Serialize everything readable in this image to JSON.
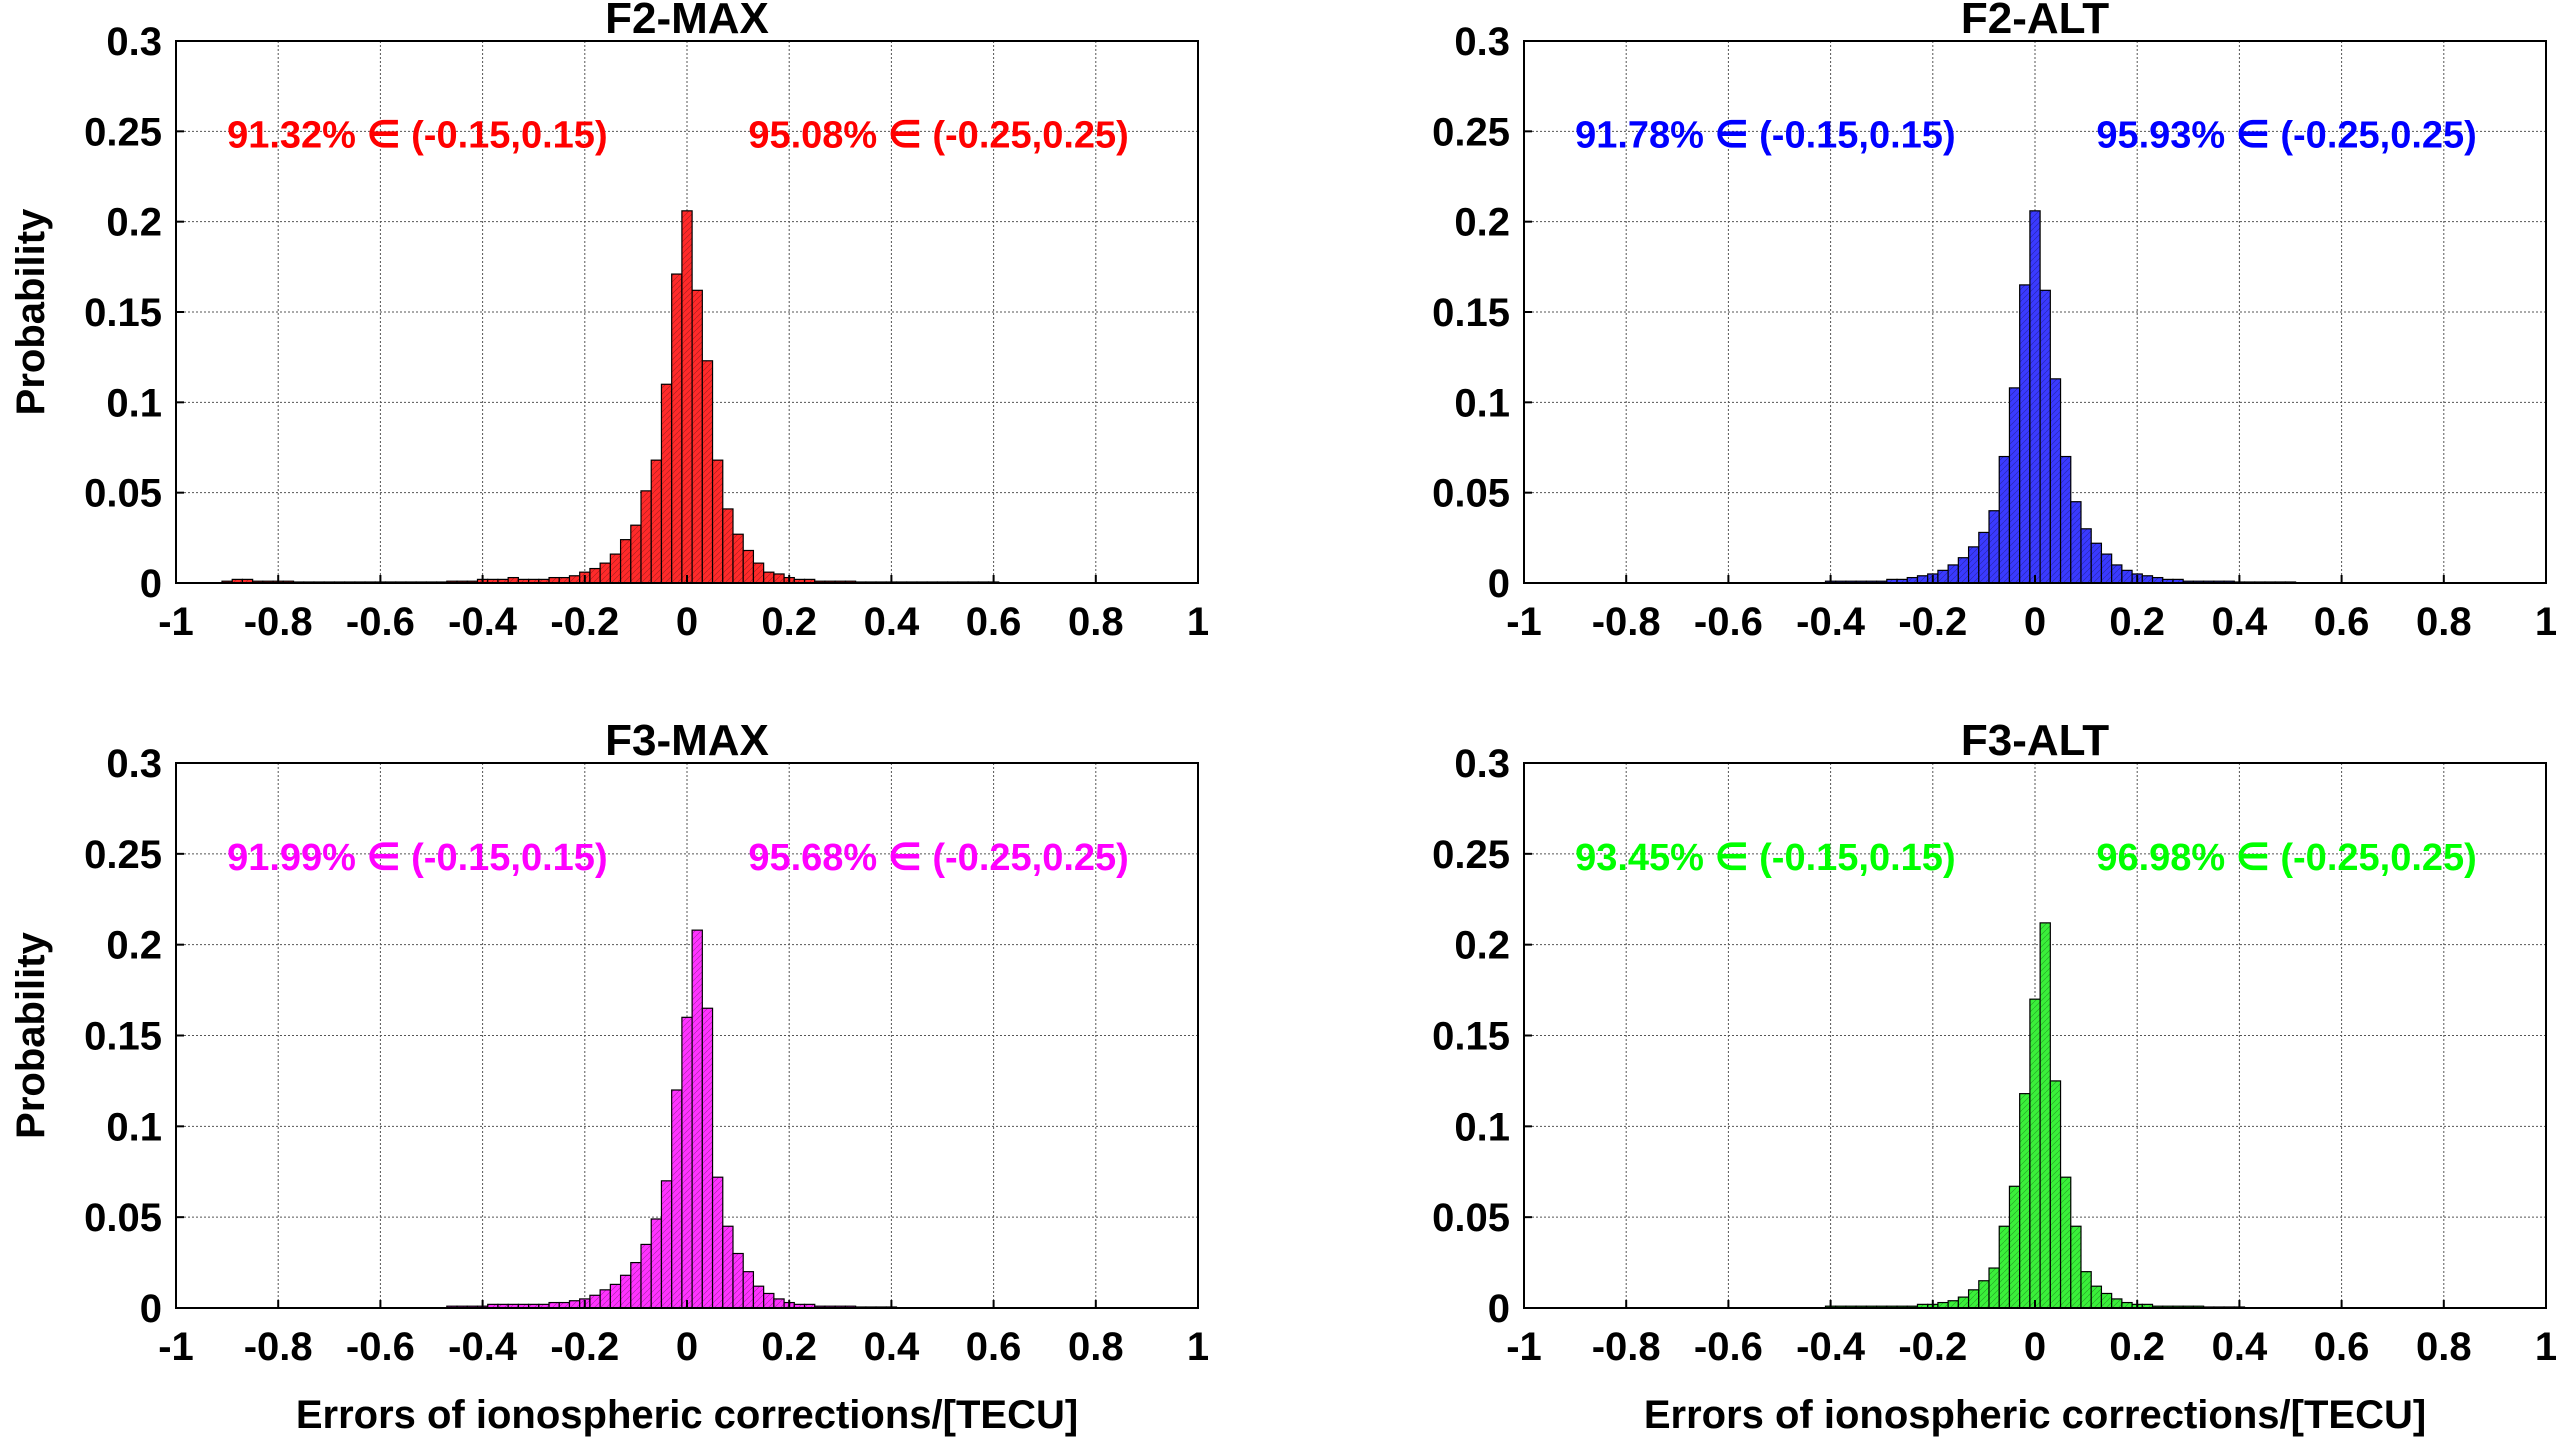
{
  "chart_data": [
    {
      "type": "bar",
      "title": "F2-MAX",
      "color": "#ff2a2a",
      "text_color": "#ff0000",
      "ylabel": "Probability",
      "xlabel": "",
      "xlim": [
        -1,
        1
      ],
      "ylim": [
        0,
        0.3
      ],
      "xticks": [
        "-1",
        "-0.8",
        "-0.6",
        "-0.4",
        "-0.2",
        "0",
        "0.2",
        "0.4",
        "0.6",
        "0.8",
        "1"
      ],
      "yticks": [
        "0",
        "0.05",
        "0.1",
        "0.15",
        "0.2",
        "0.25",
        "0.3"
      ],
      "bin_width": 0.02,
      "bin_centers": [
        -0.9,
        -0.88,
        -0.86,
        -0.84,
        -0.82,
        -0.8,
        -0.78,
        -0.76,
        -0.74,
        -0.72,
        -0.7,
        -0.68,
        -0.66,
        -0.64,
        -0.62,
        -0.6,
        -0.58,
        -0.56,
        -0.54,
        -0.52,
        -0.5,
        -0.48,
        -0.46,
        -0.44,
        -0.42,
        -0.4,
        -0.38,
        -0.36,
        -0.34,
        -0.32,
        -0.3,
        -0.28,
        -0.26,
        -0.24,
        -0.22,
        -0.2,
        -0.18,
        -0.16,
        -0.14,
        -0.12,
        -0.1,
        -0.08,
        -0.06,
        -0.04,
        -0.02,
        0,
        0.02,
        0.04,
        0.06,
        0.08,
        0.1,
        0.12,
        0.14,
        0.16,
        0.18,
        0.2,
        0.22,
        0.24,
        0.26,
        0.28,
        0.3,
        0.32,
        0.34,
        0.36,
        0.38,
        0.4,
        0.42,
        0.44,
        0.46,
        0.48,
        0.5,
        0.52,
        0.54,
        0.56,
        0.58,
        0.6
      ],
      "values": [
        0.001,
        0.002,
        0.002,
        0.001,
        0.001,
        0.001,
        0.001,
        0.0005,
        0.0005,
        0.0005,
        0.0005,
        0.0005,
        0.0005,
        0.0005,
        0.0005,
        0.0005,
        0.0005,
        0.0005,
        0.0005,
        0.0005,
        0.0005,
        0.0005,
        0.001,
        0.001,
        0.001,
        0.002,
        0.002,
        0.002,
        0.003,
        0.002,
        0.002,
        0.002,
        0.003,
        0.003,
        0.004,
        0.006,
        0.008,
        0.011,
        0.016,
        0.024,
        0.032,
        0.051,
        0.068,
        0.11,
        0.171,
        0.206,
        0.162,
        0.123,
        0.068,
        0.041,
        0.027,
        0.018,
        0.011,
        0.006,
        0.005,
        0.003,
        0.002,
        0.002,
        0.001,
        0.001,
        0.001,
        0.001,
        0.0005,
        0.0005,
        0.0005,
        0.0005,
        0.0005,
        0.0005,
        0.0005,
        0.0005,
        0.0005,
        0.0005,
        0.0005,
        0.0005,
        0.0005,
        0.0005
      ],
      "annotations": [
        {
          "text": "91.32% ∈ (-0.15,0.15)"
        },
        {
          "text": "95.08% ∈ (-0.25,0.25)"
        }
      ]
    },
    {
      "type": "bar",
      "title": "F2-ALT",
      "color": "#3a3aff",
      "text_color": "#0000ff",
      "ylabel": "",
      "xlabel": "",
      "xlim": [
        -1,
        1
      ],
      "ylim": [
        0,
        0.3
      ],
      "xticks": [
        "-1",
        "-0.8",
        "-0.6",
        "-0.4",
        "-0.2",
        "0",
        "0.2",
        "0.4",
        "0.6",
        "0.8",
        "1"
      ],
      "yticks": [
        "0",
        "0.05",
        "0.1",
        "0.15",
        "0.2",
        "0.25",
        "0.3"
      ],
      "bin_width": 0.02,
      "bin_centers": [
        -0.4,
        -0.38,
        -0.36,
        -0.34,
        -0.32,
        -0.3,
        -0.28,
        -0.26,
        -0.24,
        -0.22,
        -0.2,
        -0.18,
        -0.16,
        -0.14,
        -0.12,
        -0.1,
        -0.08,
        -0.06,
        -0.04,
        -0.02,
        0,
        0.02,
        0.04,
        0.06,
        0.08,
        0.1,
        0.12,
        0.14,
        0.16,
        0.18,
        0.2,
        0.22,
        0.24,
        0.26,
        0.28,
        0.3,
        0.32,
        0.34,
        0.36,
        0.38,
        0.4,
        0.42,
        0.44,
        0.46,
        0.48,
        0.5
      ],
      "values": [
        0.001,
        0.001,
        0.001,
        0.001,
        0.001,
        0.001,
        0.002,
        0.002,
        0.003,
        0.004,
        0.005,
        0.007,
        0.01,
        0.014,
        0.02,
        0.028,
        0.04,
        0.07,
        0.108,
        0.165,
        0.206,
        0.162,
        0.113,
        0.07,
        0.045,
        0.03,
        0.022,
        0.016,
        0.01,
        0.007,
        0.005,
        0.004,
        0.003,
        0.002,
        0.002,
        0.001,
        0.001,
        0.001,
        0.001,
        0.001,
        0.0005,
        0.0005,
        0.0005,
        0.0005,
        0.0005,
        0.0005
      ],
      "annotations": [
        {
          "text": "91.78% ∈ (-0.15,0.15)"
        },
        {
          "text": "95.93% ∈ (-0.25,0.25)"
        }
      ]
    },
    {
      "type": "bar",
      "title": "F3-MAX",
      "color": "#ff33ff",
      "text_color": "#ff00ff",
      "ylabel": "Probability",
      "xlabel": "Errors of ionospheric corrections/[TECU]",
      "xlim": [
        -1,
        1
      ],
      "ylim": [
        0,
        0.3
      ],
      "xticks": [
        "-1",
        "-0.8",
        "-0.6",
        "-0.4",
        "-0.2",
        "0",
        "0.2",
        "0.4",
        "0.6",
        "0.8",
        "1"
      ],
      "yticks": [
        "0",
        "0.05",
        "0.1",
        "0.15",
        "0.2",
        "0.25",
        "0.3"
      ],
      "bin_width": 0.02,
      "bin_centers": [
        -0.46,
        -0.44,
        -0.42,
        -0.4,
        -0.38,
        -0.36,
        -0.34,
        -0.32,
        -0.3,
        -0.28,
        -0.26,
        -0.24,
        -0.22,
        -0.2,
        -0.18,
        -0.16,
        -0.14,
        -0.12,
        -0.1,
        -0.08,
        -0.06,
        -0.04,
        -0.02,
        0,
        0.02,
        0.04,
        0.06,
        0.08,
        0.1,
        0.12,
        0.14,
        0.16,
        0.18,
        0.2,
        0.22,
        0.24,
        0.26,
        0.28,
        0.3,
        0.32,
        0.34,
        0.36,
        0.38,
        0.4
      ],
      "values": [
        0.001,
        0.001,
        0.001,
        0.001,
        0.002,
        0.002,
        0.002,
        0.002,
        0.002,
        0.002,
        0.003,
        0.003,
        0.004,
        0.005,
        0.007,
        0.01,
        0.013,
        0.018,
        0.025,
        0.035,
        0.049,
        0.07,
        0.12,
        0.16,
        0.208,
        0.165,
        0.072,
        0.045,
        0.03,
        0.02,
        0.012,
        0.008,
        0.005,
        0.003,
        0.002,
        0.002,
        0.001,
        0.001,
        0.001,
        0.001,
        0.0005,
        0.0005,
        0.0005,
        0.0005
      ],
      "annotations": [
        {
          "text": "91.99% ∈ (-0.15,0.15)"
        },
        {
          "text": "95.68% ∈ (-0.25,0.25)"
        }
      ]
    },
    {
      "type": "bar",
      "title": "F3-ALT",
      "color": "#3af03a",
      "text_color": "#00ff00",
      "ylabel": "",
      "xlabel": "Errors of ionospheric corrections/[TECU]",
      "xlim": [
        -1,
        1
      ],
      "ylim": [
        0,
        0.3
      ],
      "xticks": [
        "-1",
        "-0.8",
        "-0.6",
        "-0.4",
        "-0.2",
        "0",
        "0.2",
        "0.4",
        "0.6",
        "0.8",
        "1"
      ],
      "yticks": [
        "0",
        "0.05",
        "0.1",
        "0.15",
        "0.2",
        "0.25",
        "0.3"
      ],
      "bin_width": 0.02,
      "bin_centers": [
        -0.4,
        -0.38,
        -0.36,
        -0.34,
        -0.32,
        -0.3,
        -0.28,
        -0.26,
        -0.24,
        -0.22,
        -0.2,
        -0.18,
        -0.16,
        -0.14,
        -0.12,
        -0.1,
        -0.08,
        -0.06,
        -0.04,
        -0.02,
        0,
        0.02,
        0.04,
        0.06,
        0.08,
        0.1,
        0.12,
        0.14,
        0.16,
        0.18,
        0.2,
        0.22,
        0.24,
        0.26,
        0.28,
        0.3,
        0.32,
        0.34,
        0.36,
        0.38,
        0.4
      ],
      "values": [
        0.001,
        0.001,
        0.001,
        0.001,
        0.001,
        0.001,
        0.001,
        0.001,
        0.001,
        0.002,
        0.002,
        0.003,
        0.004,
        0.006,
        0.01,
        0.015,
        0.022,
        0.045,
        0.067,
        0.118,
        0.17,
        0.212,
        0.125,
        0.072,
        0.045,
        0.02,
        0.012,
        0.008,
        0.005,
        0.003,
        0.002,
        0.002,
        0.001,
        0.001,
        0.001,
        0.001,
        0.001,
        0.0005,
        0.0005,
        0.0005,
        0.0005
      ],
      "annotations": [
        {
          "text": "93.45% ∈ (-0.15,0.15)"
        },
        {
          "text": "96.98% ∈ (-0.25,0.25)"
        }
      ]
    }
  ]
}
